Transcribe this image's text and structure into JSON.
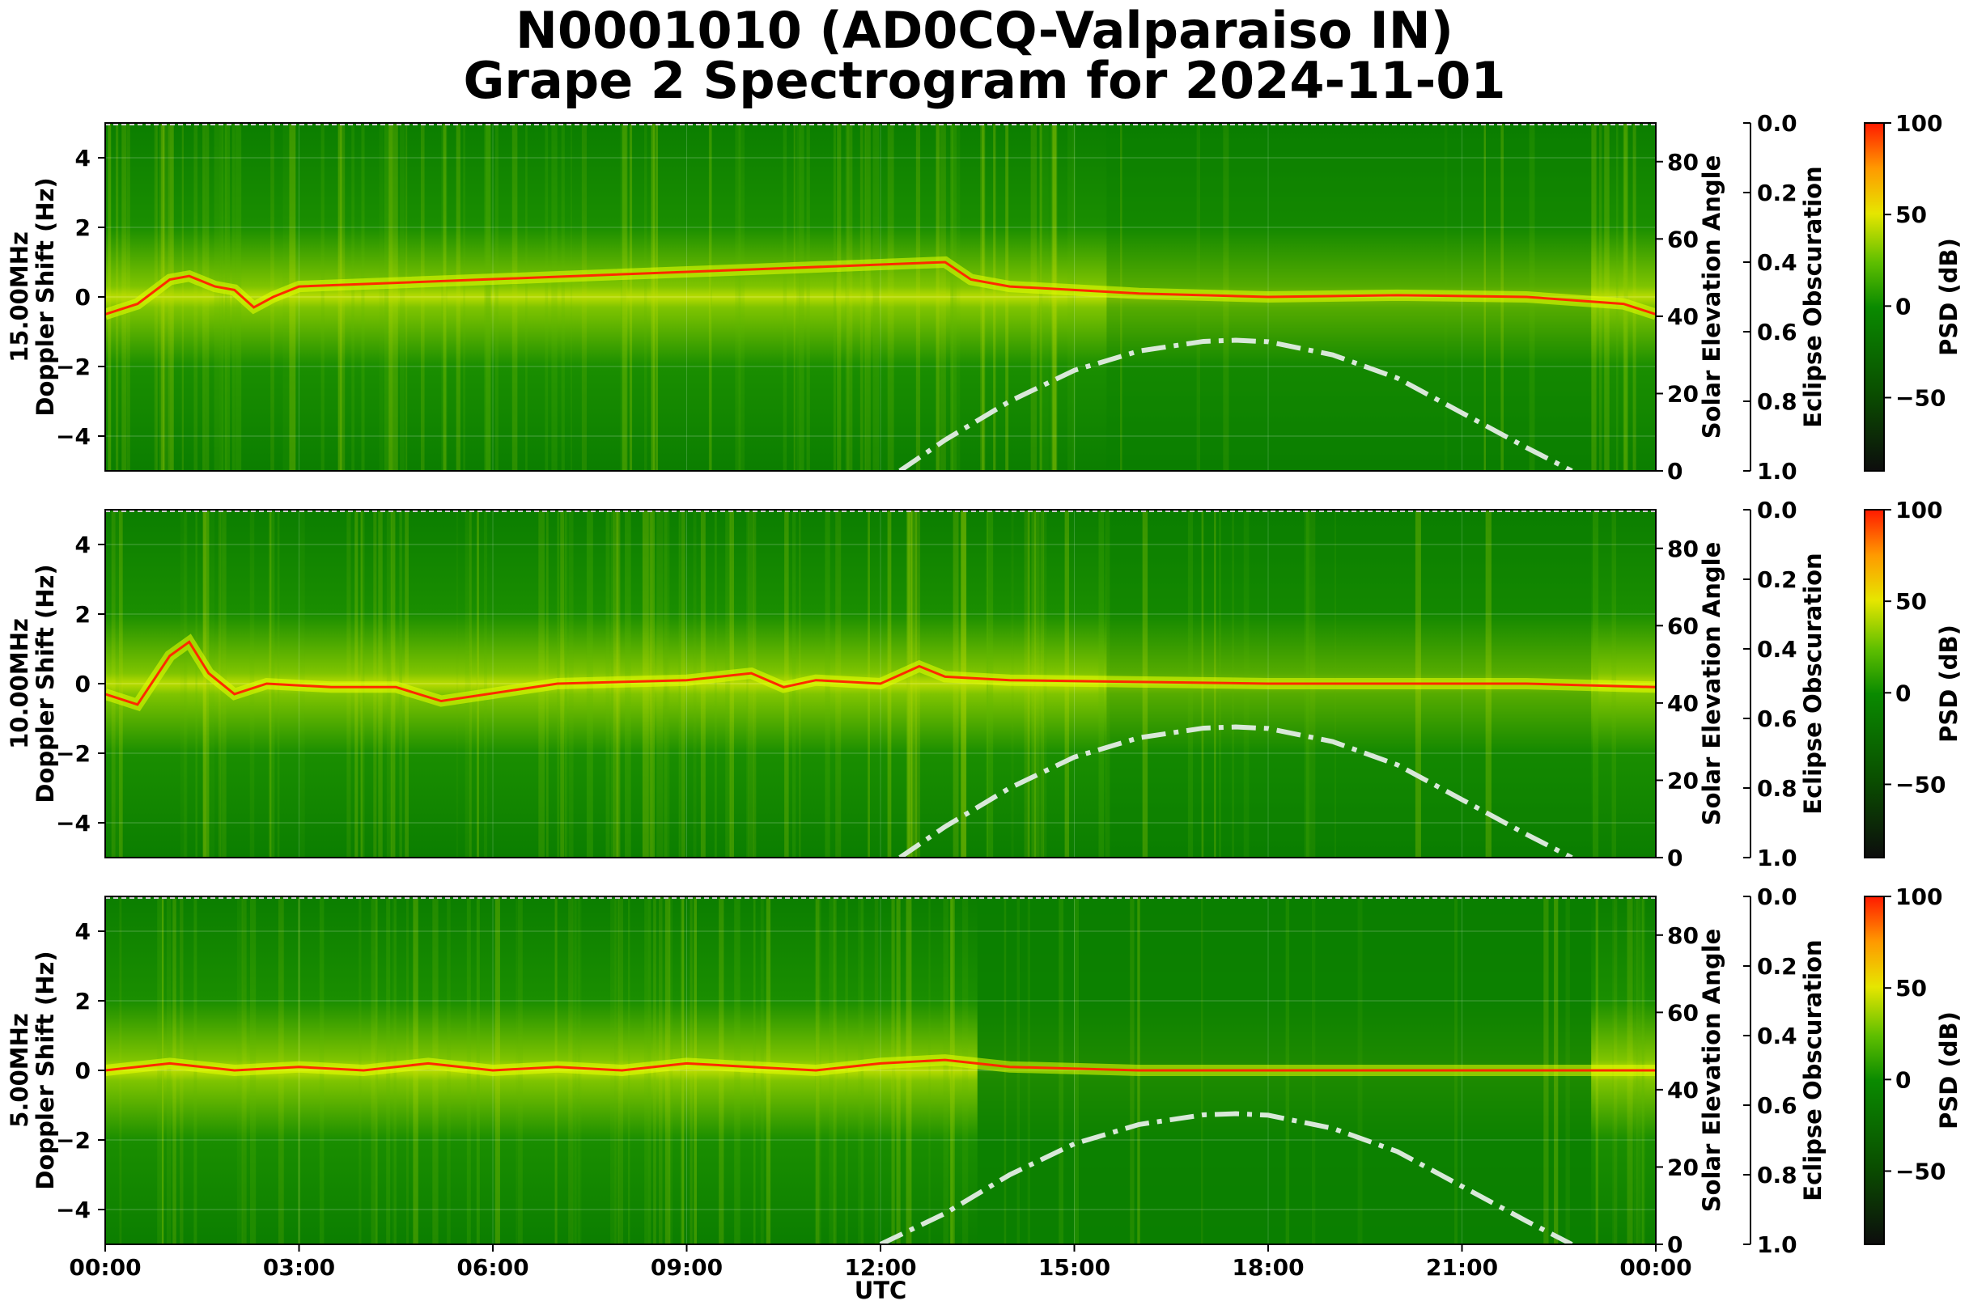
{
  "title": {
    "line1": "N0001010 (AD0CQ-Valparaiso IN)",
    "line2": "Grape 2 Spectrogram for 2024-11-01"
  },
  "colors": {
    "background_green": "#0a7a00",
    "noise_yellow": "#d6e600",
    "carrier_red": "#ff2a00",
    "solar_curve": "#d9e8d9"
  },
  "chart_data": [
    {
      "type": "heatmap",
      "panel": "15MHz",
      "ylabel_line1": "15.00MHz",
      "ylabel_line2": "Doppler Shift (Hz)",
      "xlabel": "",
      "ylim": [
        -5,
        5
      ],
      "yticks": [
        4,
        2,
        0,
        -2,
        -4
      ],
      "ytick_labels": [
        "4",
        "2",
        "0",
        "−2",
        "−4"
      ],
      "right_axis_label": "Solar Elevation Angle",
      "right_ylim": [
        0,
        90
      ],
      "right_yticks": [
        0,
        20,
        40,
        60,
        80
      ],
      "eclipse_label": "Eclipse Obscuration",
      "eclipse_ylim": [
        1.0,
        0.0
      ],
      "eclipse_ticks": [
        "0.0",
        "0.2",
        "0.4",
        "0.6",
        "0.8",
        "1.0"
      ],
      "colorbar_label": "PSD (dB)",
      "colorbar_range": [
        -90,
        100
      ],
      "colorbar_ticks": [
        "100",
        "50",
        "0",
        "−50"
      ],
      "carrier": [
        [
          0,
          -0.5
        ],
        [
          0.5,
          -0.2
        ],
        [
          1.0,
          0.5
        ],
        [
          1.3,
          0.6
        ],
        [
          1.7,
          0.3
        ],
        [
          2.0,
          0.2
        ],
        [
          2.3,
          -0.3
        ],
        [
          2.6,
          0.0
        ],
        [
          3.0,
          0.3
        ],
        [
          13.0,
          1.0
        ],
        [
          13.4,
          0.5
        ],
        [
          14,
          0.3
        ],
        [
          16,
          0.1
        ],
        [
          18,
          0.0
        ],
        [
          20,
          0.05
        ],
        [
          22,
          0.0
        ],
        [
          23.5,
          -0.2
        ],
        [
          24,
          -0.5
        ]
      ],
      "solar_elevation": [
        [
          12.3,
          0
        ],
        [
          13,
          8
        ],
        [
          14,
          18
        ],
        [
          15,
          26
        ],
        [
          16,
          31
        ],
        [
          17,
          33.5
        ],
        [
          17.5,
          33.8
        ],
        [
          18,
          33.4
        ],
        [
          19,
          30
        ],
        [
          20,
          24
        ],
        [
          21,
          15
        ],
        [
          22,
          6
        ],
        [
          22.7,
          0
        ]
      ]
    },
    {
      "type": "heatmap",
      "panel": "10MHz",
      "ylabel_line1": "10.00MHz",
      "ylabel_line2": "Doppler Shift (Hz)",
      "xlabel": "",
      "ylim": [
        -5,
        5
      ],
      "yticks": [
        4,
        2,
        0,
        -2,
        -4
      ],
      "ytick_labels": [
        "4",
        "2",
        "0",
        "−2",
        "−4"
      ],
      "right_axis_label": "Solar Elevation Angle",
      "right_ylim": [
        0,
        90
      ],
      "right_yticks": [
        0,
        20,
        40,
        60,
        80
      ],
      "eclipse_label": "Eclipse Obscuration",
      "eclipse_ylim": [
        1.0,
        0.0
      ],
      "eclipse_ticks": [
        "0.0",
        "0.2",
        "0.4",
        "0.6",
        "0.8",
        "1.0"
      ],
      "colorbar_label": "PSD (dB)",
      "colorbar_range": [
        -90,
        100
      ],
      "colorbar_ticks": [
        "100",
        "50",
        "0",
        "−50"
      ],
      "carrier": [
        [
          0,
          -0.3
        ],
        [
          0.5,
          -0.6
        ],
        [
          1.0,
          0.8
        ],
        [
          1.3,
          1.2
        ],
        [
          1.6,
          0.3
        ],
        [
          2.0,
          -0.3
        ],
        [
          2.5,
          0.0
        ],
        [
          3.5,
          -0.1
        ],
        [
          4.5,
          -0.1
        ],
        [
          5.2,
          -0.5
        ],
        [
          7,
          0.0
        ],
        [
          9,
          0.1
        ],
        [
          10,
          0.3
        ],
        [
          10.5,
          -0.1
        ],
        [
          11,
          0.1
        ],
        [
          12,
          0.0
        ],
        [
          12.6,
          0.5
        ],
        [
          13,
          0.2
        ],
        [
          14,
          0.1
        ],
        [
          18,
          0.0
        ],
        [
          22,
          0.0
        ],
        [
          24,
          -0.1
        ]
      ],
      "solar_elevation": [
        [
          12.3,
          0
        ],
        [
          13,
          8
        ],
        [
          14,
          18
        ],
        [
          15,
          26
        ],
        [
          16,
          31
        ],
        [
          17,
          33.5
        ],
        [
          17.5,
          33.8
        ],
        [
          18,
          33.4
        ],
        [
          19,
          30
        ],
        [
          20,
          24
        ],
        [
          21,
          15
        ],
        [
          22,
          6
        ],
        [
          22.7,
          0
        ]
      ]
    },
    {
      "type": "heatmap",
      "panel": "5MHz",
      "ylabel_line1": "5.00MHz",
      "ylabel_line2": "Doppler Shift (Hz)",
      "xlabel": "UTC",
      "xlim": [
        0,
        24
      ],
      "xticks": [
        0,
        3,
        6,
        9,
        12,
        15,
        18,
        21,
        24
      ],
      "xtick_labels": [
        "00:00",
        "03:00",
        "06:00",
        "09:00",
        "12:00",
        "15:00",
        "18:00",
        "21:00",
        "00:00"
      ],
      "ylim": [
        -5,
        5
      ],
      "yticks": [
        4,
        2,
        0,
        -2,
        -4
      ],
      "ytick_labels": [
        "4",
        "2",
        "0",
        "−2",
        "−4"
      ],
      "right_axis_label": "Solar Elevation Angle",
      "right_ylim": [
        0,
        90
      ],
      "right_yticks": [
        0,
        20,
        40,
        60,
        80
      ],
      "eclipse_label": "Eclipse Obscuration",
      "eclipse_ylim": [
        1.0,
        0.0
      ],
      "eclipse_ticks": [
        "0.0",
        "0.2",
        "0.4",
        "0.6",
        "0.8",
        "1.0"
      ],
      "colorbar_label": "PSD (dB)",
      "colorbar_range": [
        -90,
        100
      ],
      "colorbar_ticks": [
        "100",
        "50",
        "0",
        "−50"
      ],
      "carrier": [
        [
          0,
          0.0
        ],
        [
          1,
          0.2
        ],
        [
          2,
          0.0
        ],
        [
          3,
          0.1
        ],
        [
          4,
          0.0
        ],
        [
          5,
          0.2
        ],
        [
          6,
          0.0
        ],
        [
          7,
          0.1
        ],
        [
          8,
          0.0
        ],
        [
          9,
          0.2
        ],
        [
          10,
          0.1
        ],
        [
          11,
          0.0
        ],
        [
          12,
          0.2
        ],
        [
          13,
          0.3
        ],
        [
          14,
          0.1
        ],
        [
          16,
          0.0
        ],
        [
          20,
          0.0
        ],
        [
          24,
          0.0
        ]
      ],
      "solar_elevation": [
        [
          12.0,
          0
        ],
        [
          13,
          8
        ],
        [
          14,
          18
        ],
        [
          15,
          26
        ],
        [
          16,
          31
        ],
        [
          17,
          33.5
        ],
        [
          17.5,
          33.8
        ],
        [
          18,
          33.4
        ],
        [
          19,
          30
        ],
        [
          20,
          24
        ],
        [
          21,
          15
        ],
        [
          22,
          6
        ],
        [
          22.7,
          0
        ]
      ]
    }
  ]
}
